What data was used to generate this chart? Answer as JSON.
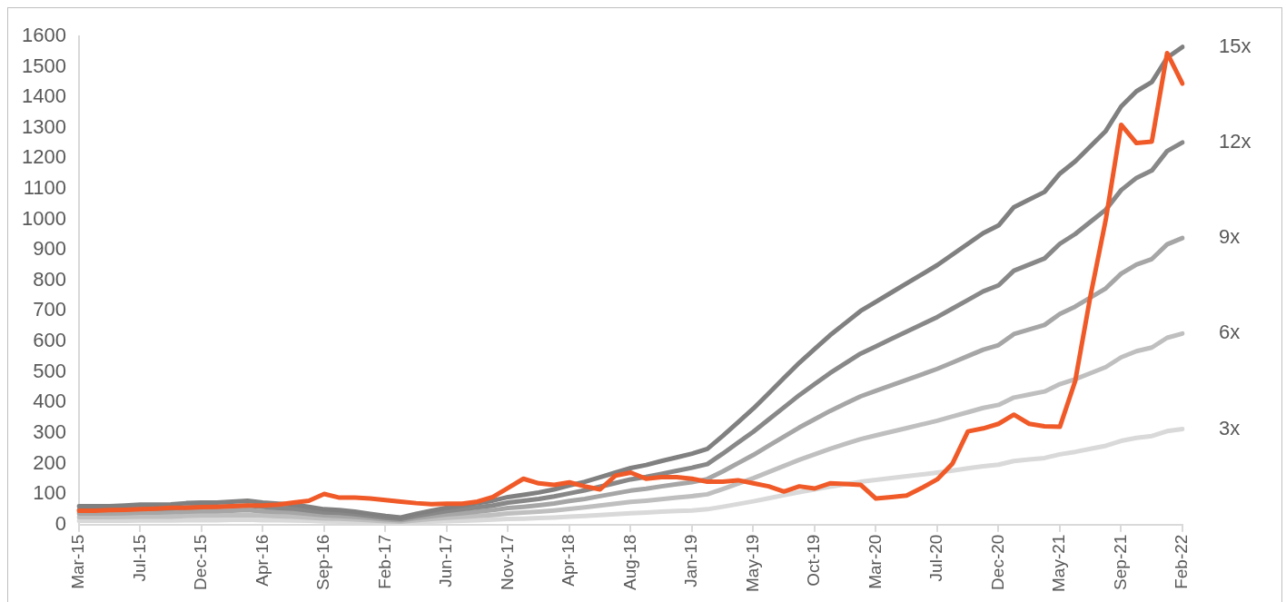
{
  "chart_data": {
    "type": "line",
    "categories": [
      "Mar-15",
      null,
      null,
      null,
      "Jul-15",
      null,
      null,
      null,
      "Dec-15",
      null,
      null,
      null,
      "Apr-16",
      null,
      null,
      null,
      "Sep-16",
      null,
      null,
      null,
      "Feb-17",
      null,
      null,
      null,
      "Jun-17",
      null,
      null,
      null,
      "Nov-17",
      null,
      null,
      null,
      "Apr-18",
      null,
      null,
      null,
      "Aug-18",
      null,
      null,
      null,
      "Jan-19",
      null,
      null,
      null,
      "May-19",
      null,
      null,
      null,
      "Oct-19",
      null,
      null,
      null,
      "Mar-20",
      null,
      null,
      null,
      "Jul-20",
      null,
      null,
      null,
      "Dec-20",
      null,
      null,
      null,
      "May-21",
      null,
      null,
      null,
      "Sep-21",
      null,
      null,
      null,
      "Feb-22"
    ],
    "series": [
      {
        "color": "#f05a28",
        "values": [
          45,
          45,
          47,
          48,
          50,
          52,
          55,
          55,
          57,
          58,
          60,
          62,
          62,
          65,
          72,
          78,
          100,
          88,
          88,
          85,
          80,
          75,
          70,
          67,
          68,
          68,
          75,
          90,
          120,
          150,
          135,
          130,
          138,
          125,
          115,
          160,
          170,
          150,
          155,
          155,
          150,
          140,
          140,
          145,
          135,
          125,
          108,
          125,
          118,
          135,
          133,
          130,
          85,
          90,
          95,
          120,
          148,
          200,
          305,
          315,
          330,
          360,
          330,
          322,
          320,
          470,
          750,
          1000,
          1310,
          1250,
          1255,
          1545,
          1445
        ]
      },
      {
        "name": "15x",
        "color": "#808080",
        "values": [
          60,
          60,
          60,
          62,
          65,
          65,
          66,
          70,
          72,
          72,
          75,
          78,
          72,
          68,
          65,
          58,
          50,
          47,
          42,
          35,
          28,
          23,
          35,
          45,
          55,
          62,
          70,
          78,
          90,
          97,
          105,
          115,
          128,
          140,
          155,
          170,
          185,
          195,
          208,
          220,
          232,
          248,
          290,
          335,
          380,
          430,
          480,
          530,
          575,
          620,
          660,
          700,
          730,
          760,
          790,
          820,
          850,
          885,
          920,
          955,
          980,
          1040,
          1065,
          1090,
          1150,
          1190,
          1240,
          1290,
          1370,
          1420,
          1450,
          1530,
          1565
        ]
      },
      {
        "name": "12x",
        "color": "#888888",
        "values": [
          48,
          48,
          48,
          50,
          52,
          52,
          53,
          56,
          58,
          58,
          60,
          62,
          58,
          54,
          52,
          46,
          40,
          38,
          34,
          28,
          22,
          18,
          28,
          36,
          44,
          50,
          56,
          62,
          72,
          78,
          84,
          92,
          102,
          112,
          124,
          136,
          148,
          156,
          166,
          176,
          186,
          198,
          232,
          268,
          304,
          344,
          384,
          424,
          460,
          496,
          528,
          560,
          584,
          608,
          632,
          656,
          680,
          708,
          736,
          764,
          784,
          832,
          852,
          872,
          920,
          952,
          992,
          1032,
          1096,
          1136,
          1160,
          1224,
          1252
        ]
      },
      {
        "name": "9x",
        "color": "#a6a6a6",
        "values": [
          36,
          36,
          36,
          37,
          39,
          39,
          40,
          42,
          43,
          43,
          45,
          47,
          43,
          41,
          39,
          35,
          30,
          28,
          25,
          21,
          17,
          14,
          21,
          27,
          33,
          37,
          42,
          47,
          54,
          58,
          63,
          69,
          77,
          84,
          93,
          102,
          111,
          117,
          125,
          132,
          139,
          149,
          174,
          201,
          228,
          258,
          288,
          318,
          345,
          372,
          396,
          420,
          438,
          456,
          474,
          492,
          510,
          531,
          552,
          573,
          588,
          624,
          639,
          654,
          690,
          714,
          744,
          774,
          822,
          852,
          870,
          918,
          939
        ]
      },
      {
        "name": "6x",
        "color": "#bfbfbf",
        "values": [
          24,
          24,
          24,
          25,
          26,
          26,
          26,
          28,
          29,
          29,
          30,
          31,
          29,
          27,
          26,
          23,
          20,
          19,
          17,
          14,
          11,
          9,
          14,
          18,
          22,
          25,
          28,
          31,
          36,
          39,
          42,
          46,
          51,
          56,
          62,
          68,
          74,
          78,
          83,
          88,
          93,
          99,
          116,
          134,
          152,
          172,
          192,
          212,
          230,
          248,
          264,
          280,
          292,
          304,
          316,
          328,
          340,
          354,
          368,
          382,
          392,
          416,
          426,
          436,
          460,
          476,
          496,
          516,
          548,
          568,
          580,
          612,
          626
        ]
      },
      {
        "name": "3x",
        "color": "#d9d9d9",
        "values": [
          12,
          12,
          12,
          12,
          13,
          13,
          13,
          14,
          14,
          14,
          15,
          16,
          14,
          14,
          13,
          12,
          10,
          9,
          8,
          7,
          6,
          5,
          7,
          9,
          11,
          12,
          14,
          16,
          18,
          19,
          21,
          23,
          26,
          28,
          31,
          34,
          37,
          39,
          42,
          44,
          46,
          50,
          58,
          67,
          76,
          86,
          96,
          106,
          115,
          124,
          132,
          140,
          146,
          152,
          158,
          164,
          170,
          177,
          184,
          191,
          196,
          208,
          213,
          218,
          230,
          238,
          248,
          258,
          274,
          284,
          290,
          306,
          313
        ]
      }
    ],
    "ylim": [
      0,
      1600
    ],
    "yticks": [
      0,
      100,
      200,
      300,
      400,
      500,
      600,
      700,
      800,
      900,
      1000,
      1100,
      1200,
      1300,
      1400,
      1500,
      1600
    ],
    "grid": false,
    "legend": false,
    "marker": "none",
    "line_style": "solid"
  }
}
